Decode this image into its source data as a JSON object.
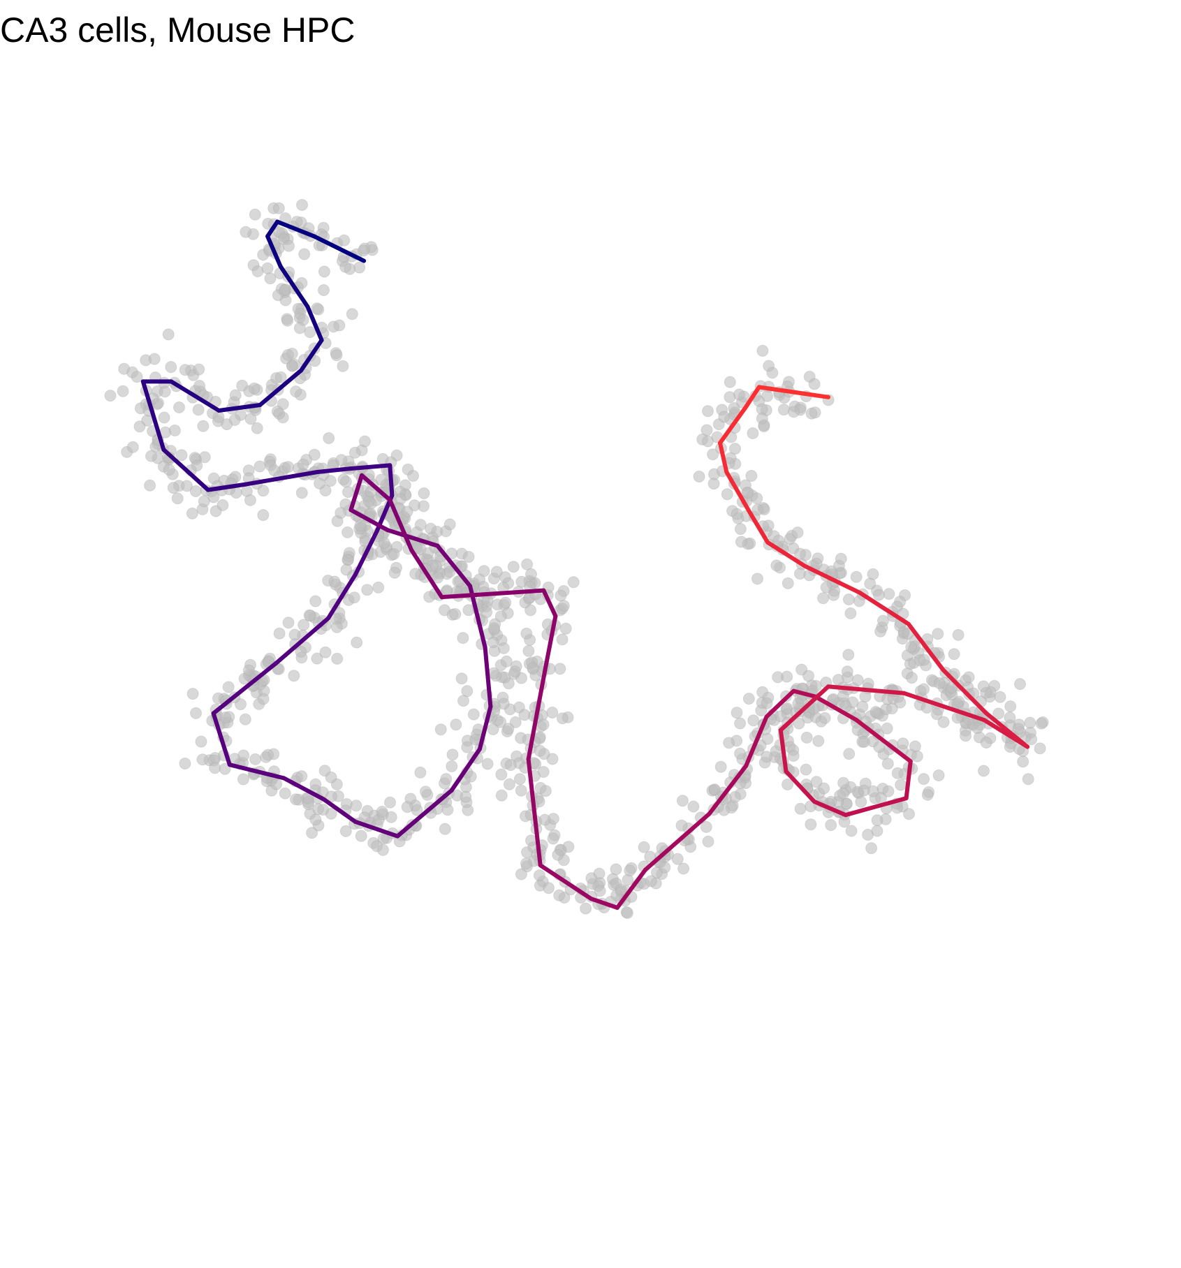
{
  "chart_data": {
    "type": "scatter",
    "title": "CA3 cells, Mouse HPC",
    "xlabel": "",
    "ylabel": "",
    "axes_visible": false,
    "grid": false,
    "legend": "none",
    "xlim": [
      0,
      100
    ],
    "ylim": [
      0,
      100
    ],
    "point_color": "#bebebe",
    "point_opacity": 0.6,
    "trajectory_gradient": [
      "#000080",
      "#4b0082",
      "#800070",
      "#c01050",
      "#ff3030"
    ],
    "trajectory": {
      "x": [
        29.1,
        24.5,
        21.1,
        20.2,
        21.4,
        23.9,
        25.2,
        23.3,
        19.5,
        15.7,
        11.3,
        8.7,
        10.6,
        14.7,
        18.2,
        24.8,
        27.8,
        31.5,
        31.7,
        30.3,
        28.3,
        25.8,
        21.0,
        15.2,
        16.7,
        21.7,
        25.4,
        28.3,
        32.2,
        37.2,
        39.8,
        40.8,
        40.3,
        38.9,
        35.9,
        31.3,
        27.9,
        28.9,
        31.5,
        33.5,
        36.3,
        45.7,
        46.8,
        45.8,
        44.3,
        45.4,
        50.1,
        52.5,
        55.1,
        61.0,
        64.4,
        66.3,
        68.8,
        70.8,
        74.6,
        79.6,
        79.2,
        73.6,
        70.7,
        68.1,
        67.6,
        72.0,
        79.0,
        86.4,
        90.4,
        86.6,
        82.6,
        79.4,
        74.9,
        69.8,
        66.4,
        64.8,
        62.6,
        62.0,
        64.3,
        65.6,
        72.0
      ],
      "y": [
        85.4,
        87.6,
        88.9,
        87.6,
        84.9,
        81.3,
        78.3,
        75.6,
        72.5,
        72.0,
        74.6,
        74.6,
        68.5,
        64.9,
        65.4,
        66.5,
        66.8,
        67.1,
        64.4,
        61.2,
        57.3,
        53.4,
        49.4,
        44.9,
        40.3,
        39.1,
        37.2,
        35.2,
        33.9,
        38.0,
        41.7,
        45.5,
        50.8,
        56.3,
        59.9,
        61.3,
        63.1,
        66.2,
        64.0,
        59.5,
        55.3,
        55.9,
        53.6,
        48.6,
        40.8,
        31.3,
        28.3,
        27.5,
        30.9,
        35.9,
        40.2,
        44.6,
        46.9,
        46.4,
        44.3,
        40.6,
        37.3,
        35.8,
        37.0,
        39.7,
        43.4,
        47.3,
        46.7,
        44.3,
        41.9,
        44.9,
        48.8,
        52.9,
        55.7,
        58.1,
        60.2,
        62.8,
        66.5,
        69.1,
        72.2,
        74.1,
        73.2
      ]
    }
  }
}
